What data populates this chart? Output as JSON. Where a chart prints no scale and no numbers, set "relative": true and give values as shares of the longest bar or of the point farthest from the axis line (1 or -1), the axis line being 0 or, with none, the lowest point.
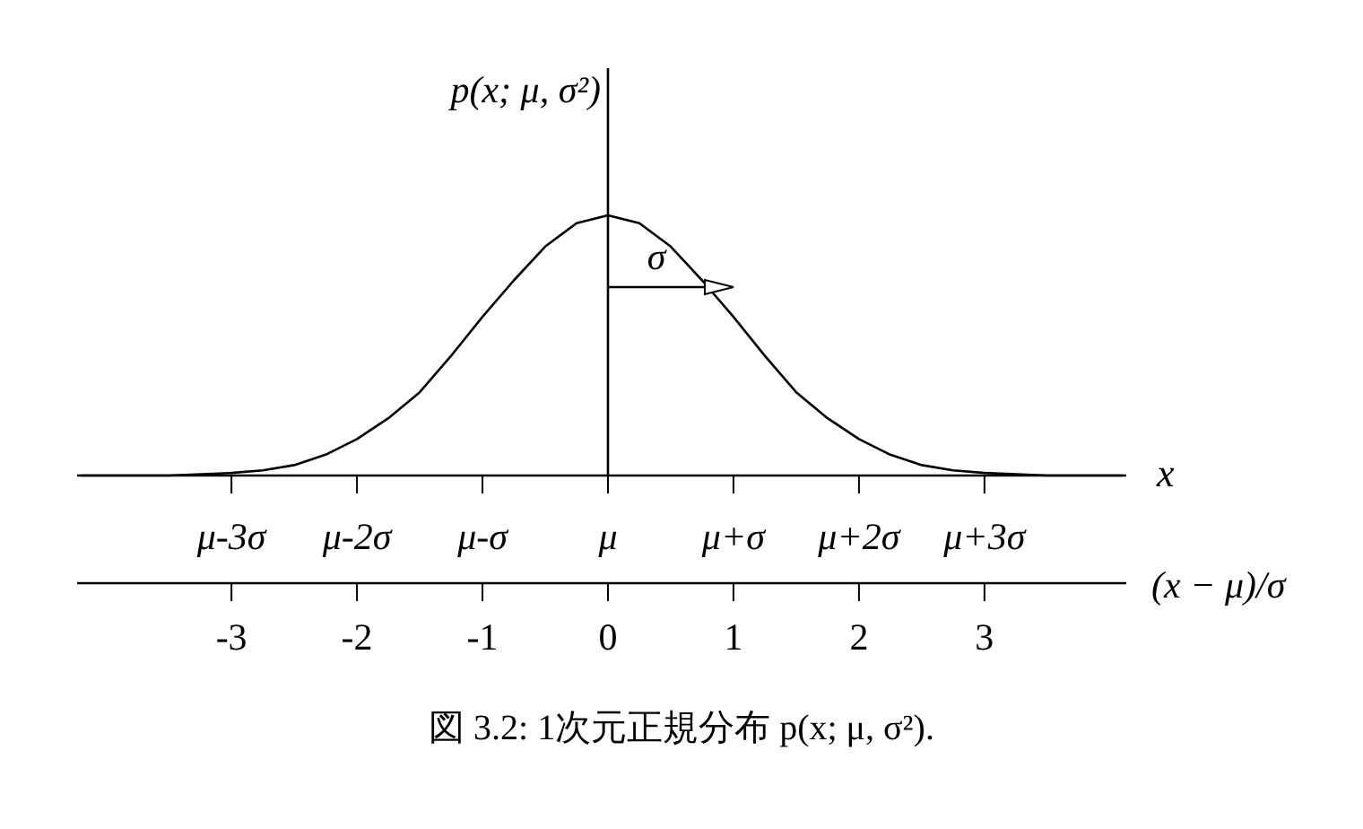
{
  "chart_data": {
    "type": "line",
    "relative": true,
    "x2label": "x",
    "xlabel": "(x − μ)/σ",
    "ylabel": "p(x; μ, σ²)",
    "x": [
      -4.2,
      -3.5,
      -3,
      -2.75,
      -2.5,
      -2.25,
      -2,
      -1.75,
      -1.5,
      -1.25,
      -1,
      -0.75,
      -0.5,
      -0.25,
      0,
      0.25,
      0.5,
      0.75,
      1,
      1.25,
      1.5,
      1.75,
      2,
      2.25,
      2.5,
      2.75,
      3,
      3.5,
      4.1
    ],
    "series": [
      {
        "color": "#000000",
        "values": [
          0,
          0,
          0.01,
          0.02,
          0.04,
          0.08,
          0.14,
          0.22,
          0.32,
          0.46,
          0.61,
          0.75,
          0.88,
          0.97,
          1,
          0.97,
          0.88,
          0.75,
          0.61,
          0.46,
          0.32,
          0.22,
          0.14,
          0.08,
          0.04,
          0.02,
          0.01,
          0,
          0
        ]
      }
    ],
    "xlim": [
      -4.23,
      4.13
    ],
    "xticks": [
      -3,
      -2,
      -1,
      0,
      1,
      2,
      3
    ],
    "annotations": [
      "σ",
      "μ-3σ",
      "μ-2σ",
      "μ-σ",
      "μ",
      "μ+σ",
      "μ+2σ",
      "μ+3σ",
      "図 3.2: 1次元正規分布 p(x; μ, σ²)."
    ]
  }
}
